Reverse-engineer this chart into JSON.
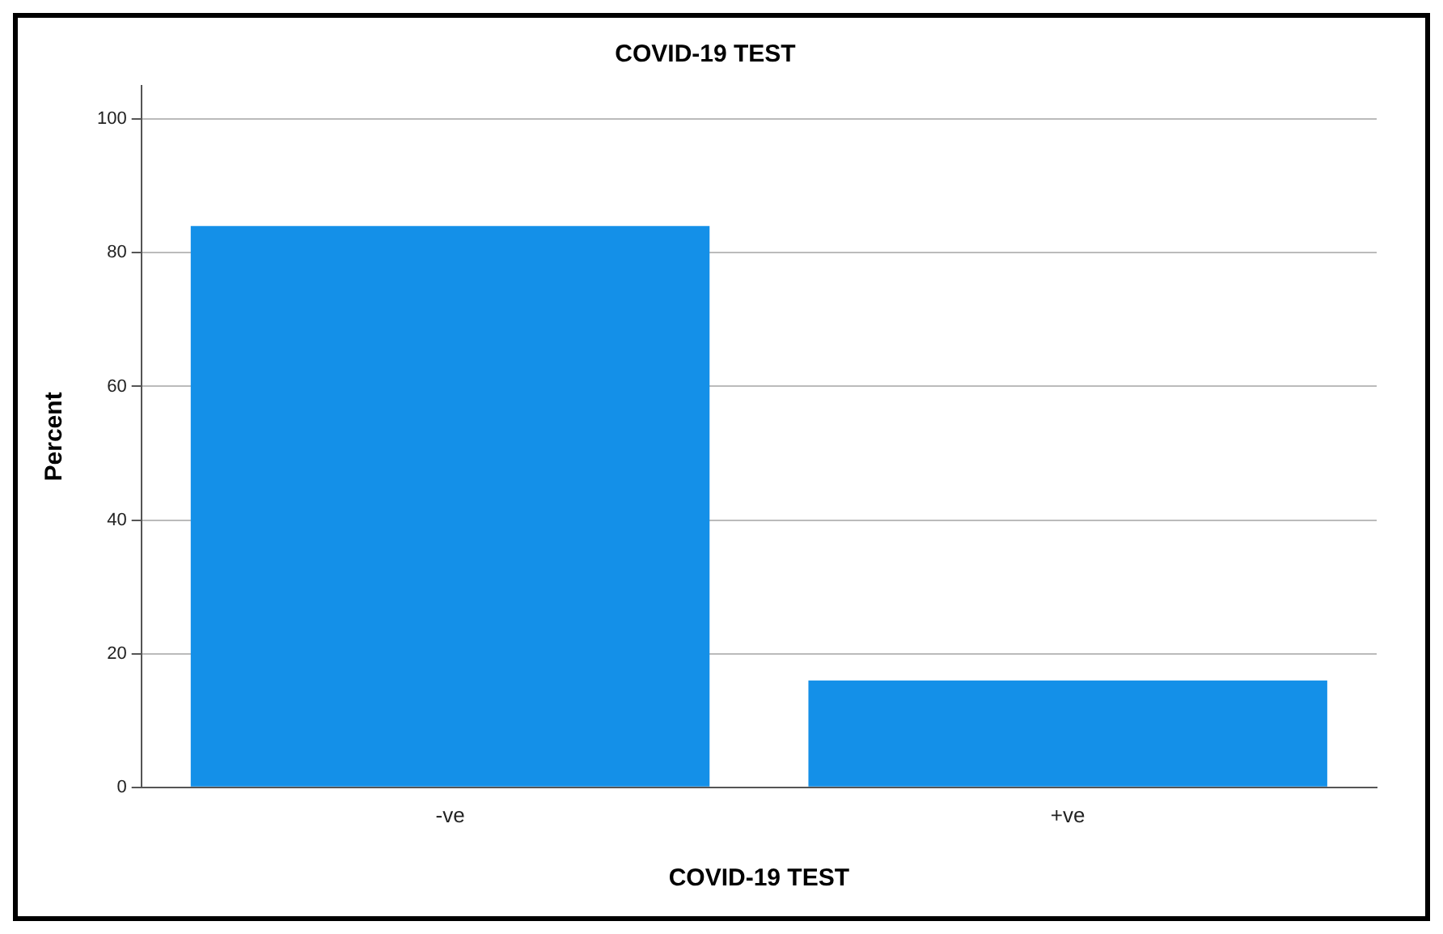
{
  "chart_data": {
    "type": "bar",
    "title": "COVID-19 TEST",
    "xlabel": "COVID-19 TEST",
    "ylabel": "Percent",
    "categories": [
      "-ve",
      "+ve"
    ],
    "series": [
      {
        "color": "#1490e8",
        "values": [
          84,
          16
        ]
      }
    ],
    "ylim": [
      0,
      105
    ],
    "yticks": [
      0,
      20,
      40,
      60,
      80,
      100
    ],
    "grid": "y",
    "legend": false
  }
}
